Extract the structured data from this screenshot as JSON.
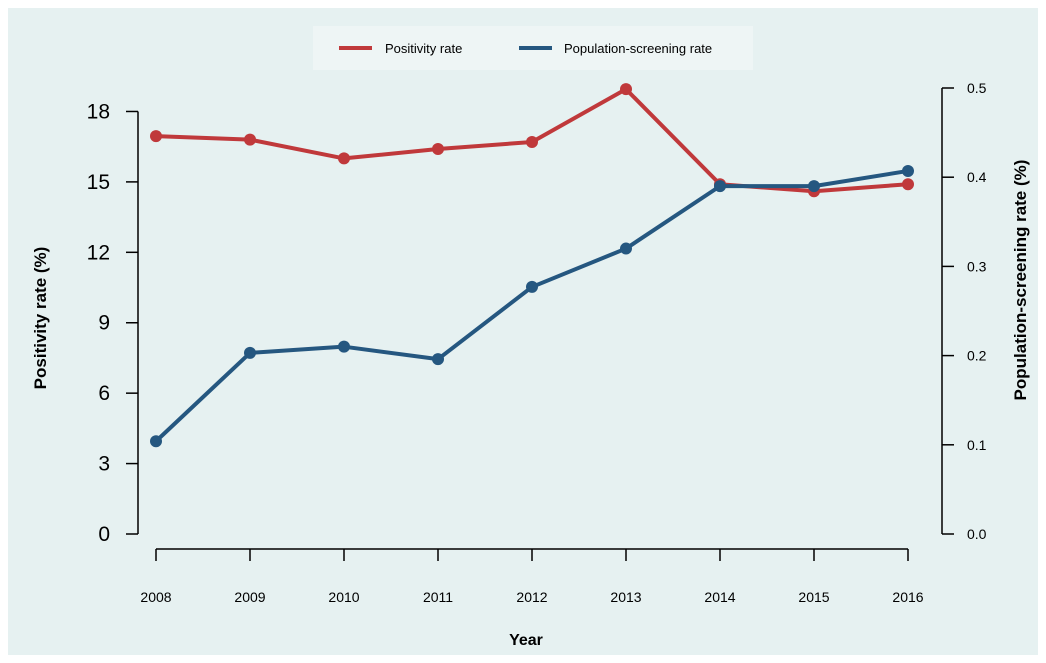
{
  "chart_data": {
    "type": "line",
    "x": [
      "2008",
      "2009",
      "2010",
      "2011",
      "2012",
      "2013",
      "2014",
      "2015",
      "2016"
    ],
    "xlabel": "Year",
    "ylabel_left": "Positivity rate (%)",
    "ylabel_right": "Population-screening rate (%)",
    "yleft_lim": [
      0,
      19
    ],
    "yleft_ticks": [
      "0",
      "3",
      "6",
      "9",
      "12",
      "15",
      "18"
    ],
    "yright_lim": [
      0,
      0.5
    ],
    "yright_ticks": [
      "0.0",
      "0.1",
      "0.2",
      "0.3",
      "0.4",
      "0.5"
    ],
    "legend_position": "top-center",
    "grid": false,
    "series": [
      {
        "name": "Positivity rate",
        "axis": "left",
        "color": "#c0393b",
        "values": [
          16.95,
          16.8,
          16.0,
          16.4,
          16.7,
          18.95,
          14.9,
          14.6,
          14.9
        ]
      },
      {
        "name": "Population-screening rate",
        "axis": "right",
        "color": "#255780",
        "values": [
          0.104,
          0.203,
          0.21,
          0.196,
          0.277,
          0.32,
          0.39,
          0.39,
          0.407
        ]
      }
    ]
  }
}
